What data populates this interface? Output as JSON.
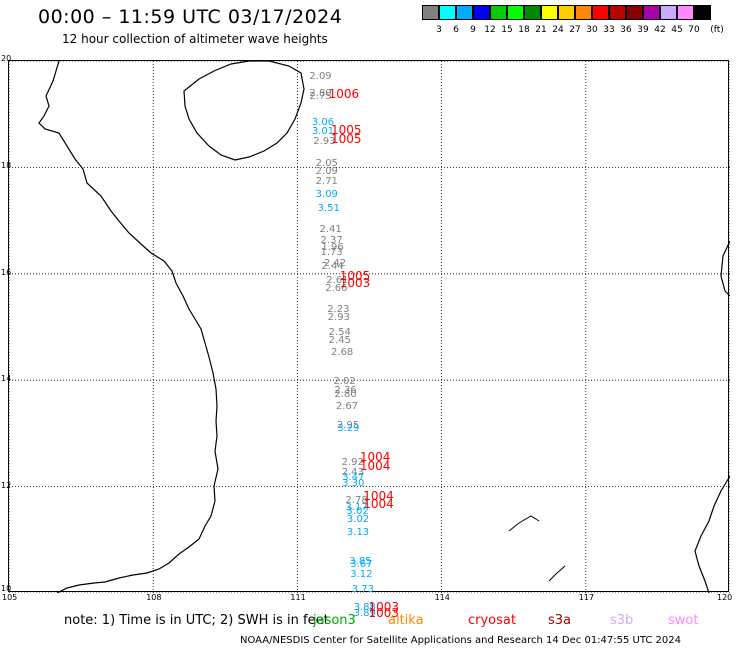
{
  "header": {
    "title": "00:00 – 11:59 UTC 03/17/2024",
    "subtitle": "12 hour collection of altimeter wave heights"
  },
  "scale": {
    "unit": "(ft)",
    "labels": [
      "3",
      "6",
      "9",
      "12",
      "15",
      "18",
      "21",
      "24",
      "27",
      "30",
      "33",
      "36",
      "39",
      "42",
      "45",
      "70"
    ],
    "colors": [
      "#808080",
      "#00ffff",
      "#00aaff",
      "#0000ff",
      "#00cc00",
      "#00ff00",
      "#008800",
      "#ffff00",
      "#ffcc00",
      "#ff8800",
      "#ff0000",
      "#bb0000",
      "#880000",
      "#aa00aa",
      "#ccaaff",
      "#ff88ff",
      "#000000"
    ]
  },
  "axes": {
    "lon_labels": [
      "105",
      "108",
      "111",
      "114",
      "117",
      "120"
    ],
    "lat_labels": [
      "20",
      "18",
      "16",
      "14",
      "12",
      "10"
    ]
  },
  "observations": [
    {
      "lat": 19.69,
      "lon": 111.25,
      "text": "2.09",
      "color": "#808080"
    },
    {
      "lat": 19.38,
      "lon": 111.25,
      "text": "2.80",
      "color": "#808080"
    },
    {
      "lat": 19.32,
      "lon": 111.25,
      "text": "2.75",
      "color": "#808080"
    },
    {
      "lat": 18.83,
      "lon": 111.3,
      "text": "3.06",
      "color": "#00aaff"
    },
    {
      "lat": 18.66,
      "lon": 111.3,
      "text": "3.01",
      "color": "#00aaff"
    },
    {
      "lat": 18.48,
      "lon": 111.33,
      "text": "2.93",
      "color": "#808080"
    },
    {
      "lat": 18.07,
      "lon": 111.38,
      "text": "2.05",
      "color": "#808080"
    },
    {
      "lat": 17.92,
      "lon": 111.38,
      "text": "2.09",
      "color": "#808080"
    },
    {
      "lat": 17.72,
      "lon": 111.38,
      "text": "2.71",
      "color": "#808080"
    },
    {
      "lat": 17.48,
      "lon": 111.38,
      "text": "3.09",
      "color": "#00aaff"
    },
    {
      "lat": 17.21,
      "lon": 111.42,
      "text": "3.51",
      "color": "#00aaff"
    },
    {
      "lat": 16.83,
      "lon": 111.46,
      "text": "2.41",
      "color": "#808080"
    },
    {
      "lat": 16.61,
      "lon": 111.48,
      "text": "2.37",
      "color": "#808080"
    },
    {
      "lat": 16.48,
      "lon": 111.5,
      "text": "1.96",
      "color": "#808080"
    },
    {
      "lat": 16.39,
      "lon": 111.48,
      "text": "1.73",
      "color": "#808080"
    },
    {
      "lat": 16.19,
      "lon": 111.55,
      "text": "2.42",
      "color": "#808080"
    },
    {
      "lat": 16.12,
      "lon": 111.5,
      "text": "2.44",
      "color": "#808080"
    },
    {
      "lat": 15.86,
      "lon": 111.6,
      "text": "2.61",
      "color": "#808080"
    },
    {
      "lat": 15.72,
      "lon": 111.58,
      "text": "2.66",
      "color": "#808080"
    },
    {
      "lat": 15.32,
      "lon": 111.62,
      "text": "2.23",
      "color": "#808080"
    },
    {
      "lat": 15.17,
      "lon": 111.63,
      "text": "2.93",
      "color": "#808080"
    },
    {
      "lat": 14.89,
      "lon": 111.65,
      "text": "2.54",
      "color": "#808080"
    },
    {
      "lat": 14.73,
      "lon": 111.65,
      "text": "2.45",
      "color": "#808080"
    },
    {
      "lat": 14.51,
      "lon": 111.7,
      "text": "2.68",
      "color": "#808080"
    },
    {
      "lat": 13.97,
      "lon": 111.75,
      "text": "2.02",
      "color": "#808080"
    },
    {
      "lat": 13.79,
      "lon": 111.77,
      "text": "2.36",
      "color": "#808080"
    },
    {
      "lat": 13.73,
      "lon": 111.77,
      "text": "2.80",
      "color": "#808080"
    },
    {
      "lat": 13.49,
      "lon": 111.8,
      "text": "2.67",
      "color": "#808080"
    },
    {
      "lat": 13.14,
      "lon": 111.82,
      "text": "2.95",
      "color": "#808080"
    },
    {
      "lat": 13.09,
      "lon": 111.83,
      "text": "3.29",
      "color": "#00aaff"
    },
    {
      "lat": 12.45,
      "lon": 111.92,
      "text": "2.92",
      "color": "#808080"
    },
    {
      "lat": 12.25,
      "lon": 111.92,
      "text": "2.43",
      "color": "#808080"
    },
    {
      "lat": 12.17,
      "lon": 111.93,
      "text": "3.47",
      "color": "#00aaff"
    },
    {
      "lat": 12.05,
      "lon": 111.93,
      "text": "3.30",
      "color": "#00aaff"
    },
    {
      "lat": 11.73,
      "lon": 112.0,
      "text": "2.78",
      "color": "#808080"
    },
    {
      "lat": 11.6,
      "lon": 112.0,
      "text": "3.17",
      "color": "#00aaff"
    },
    {
      "lat": 11.53,
      "lon": 112.02,
      "text": "3.02",
      "color": "#00aaff"
    },
    {
      "lat": 11.37,
      "lon": 112.03,
      "text": "3.02",
      "color": "#00aaff"
    },
    {
      "lat": 11.12,
      "lon": 112.03,
      "text": "3.13",
      "color": "#00aaff"
    },
    {
      "lat": 10.59,
      "lon": 112.08,
      "text": "3.85",
      "color": "#00aaff"
    },
    {
      "lat": 10.52,
      "lon": 112.1,
      "text": "3.67",
      "color": "#00aaff"
    },
    {
      "lat": 10.33,
      "lon": 112.1,
      "text": "3.12",
      "color": "#00aaff"
    },
    {
      "lat": 10.06,
      "lon": 112.13,
      "text": "3.73",
      "color": "#00aaff"
    },
    {
      "lat": 9.72,
      "lon": 112.17,
      "text": "3.88",
      "color": "#00aaff"
    },
    {
      "lat": 9.61,
      "lon": 112.17,
      "text": "3.89",
      "color": "#00aaff"
    }
  ],
  "pressures": [
    {
      "lat": 19.38,
      "lon": 111.65,
      "text": "1006"
    },
    {
      "lat": 18.7,
      "lon": 111.7,
      "text": "1005"
    },
    {
      "lat": 18.53,
      "lon": 111.7,
      "text": "1005"
    },
    {
      "lat": 15.95,
      "lon": 111.88,
      "text": "1005"
    },
    {
      "lat": 15.82,
      "lon": 111.88,
      "text": "1003"
    },
    {
      "lat": 12.55,
      "lon": 112.3,
      "text": "1004"
    },
    {
      "lat": 12.38,
      "lon": 112.3,
      "text": "1004"
    },
    {
      "lat": 11.83,
      "lon": 112.37,
      "text": "1004"
    },
    {
      "lat": 11.68,
      "lon": 112.37,
      "text": "1004"
    },
    {
      "lat": 9.73,
      "lon": 112.48,
      "text": "1003"
    },
    {
      "lat": 9.62,
      "lon": 112.48,
      "text": "1003"
    }
  ],
  "footer": {
    "note": "note:  1) Time is in UTC;  2) SWH is in feet",
    "satellites": [
      {
        "name": "jason3",
        "color": "#00aa00"
      },
      {
        "name": "altika",
        "color": "#ff8800"
      },
      {
        "name": "cryosat",
        "color": "#ff0000"
      },
      {
        "name": "s3a",
        "color": "#aa0000"
      },
      {
        "name": "s3b",
        "color": "#ccaaff"
      },
      {
        "name": "swot",
        "color": "#ff88ff"
      }
    ],
    "credit": "NOAA/NESDIS Center for Satellite Applications and Research     14 Dec 01:47:55 UTC 2024"
  }
}
